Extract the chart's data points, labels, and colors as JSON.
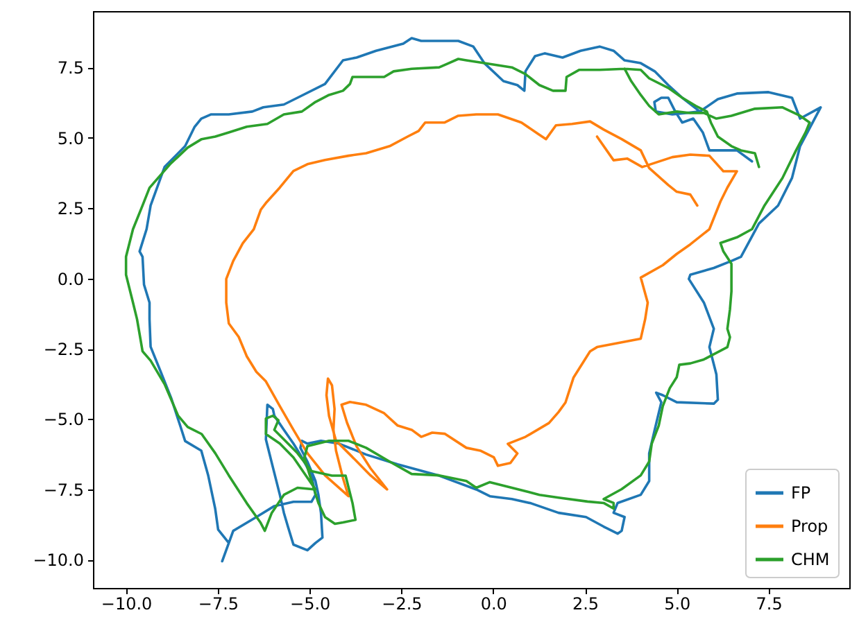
{
  "chart_data": {
    "type": "line",
    "xlim": [
      -10.9,
      9.7
    ],
    "ylim": [
      -11.0,
      9.5
    ],
    "xticks": [
      {
        "value": -10,
        "label": "−10.0"
      },
      {
        "value": -7.5,
        "label": "−7.5"
      },
      {
        "value": -5,
        "label": "−5.0"
      },
      {
        "value": -2.5,
        "label": "−2.5"
      },
      {
        "value": 0,
        "label": "0.0"
      },
      {
        "value": 2.5,
        "label": "2.5"
      },
      {
        "value": 5,
        "label": "5.0"
      },
      {
        "value": 7.5,
        "label": "7.5"
      }
    ],
    "yticks": [
      {
        "value": -10,
        "label": "−10.0"
      },
      {
        "value": -7.5,
        "label": "−7.5"
      },
      {
        "value": -5,
        "label": "−5.0"
      },
      {
        "value": -2.5,
        "label": "−2.5"
      },
      {
        "value": 0,
        "label": "0.0"
      },
      {
        "value": 2.5,
        "label": "2.5"
      },
      {
        "value": 5,
        "label": "5.0"
      },
      {
        "value": 7.5,
        "label": "7.5"
      }
    ],
    "grid": false,
    "legend": "bottom right",
    "line_style": "solid",
    "marker": "none",
    "series": [
      {
        "name": "FP",
        "color": "#1f77b4",
        "x": [
          7.05,
          6.64,
          5.89,
          5.71,
          5.45,
          5.15,
          4.96,
          4.77,
          4.58,
          4.39,
          4.43,
          4.88,
          5.63,
          5.15,
          4.77,
          4.4,
          4.02,
          3.58,
          3.28,
          2.9,
          2.38,
          1.89,
          1.41,
          1.14,
          0.88,
          0.85,
          0.66,
          0.28,
          -0.24,
          -0.54,
          -0.95,
          -1.96,
          -2.22,
          -2.45,
          -3.19,
          -3.72,
          -4.09,
          -4.58,
          -5.33,
          -5.7,
          -6.26,
          -6.56,
          -7.2,
          -7.68,
          -7.95,
          -8.13,
          -8.39,
          -8.95,
          -9.33,
          -9.44,
          -9.63,
          -9.55,
          -9.51,
          -9.36,
          -9.36,
          -9.33,
          -9.07,
          -8.77,
          -8.51,
          -8.39,
          -7.95,
          -7.76,
          -7.57,
          -7.49,
          -7.2,
          -7.38,
          -7.08,
          -6.45,
          -5.96,
          -5.44,
          -4.95,
          -4.84,
          -4.95,
          -5.21,
          -5.44,
          -5.7,
          -5.96,
          -6.0,
          -6.15,
          -6.19,
          -6.0,
          -5.81,
          -5.7,
          -5.59,
          -5.44,
          -5.06,
          -4.84,
          -4.65,
          -4.69,
          -4.76,
          -4.84,
          -5.06,
          -5.25,
          -5.21,
          -5.06,
          -4.69,
          -4.2,
          -3.46,
          -2.6,
          -1.47,
          -0.46,
          -0.09,
          0.51,
          1.03,
          1.78,
          2.53,
          3.01,
          3.39,
          3.5,
          3.58,
          3.28,
          3.39,
          4.02,
          4.25,
          4.25,
          4.4,
          4.58,
          4.44,
          4.62,
          5.0,
          6.01,
          6.12,
          6.08,
          5.89,
          6.01,
          5.74,
          5.33,
          5.37,
          6.01,
          6.49,
          6.75,
          7.24,
          7.76,
          8.14,
          8.36,
          8.92,
          8.36,
          8.14,
          7.5,
          6.64,
          6.12,
          5.63
        ],
        "values": [
          4.16,
          4.55,
          4.55,
          5.19,
          5.68,
          5.54,
          5.93,
          6.42,
          6.42,
          6.27,
          5.93,
          5.83,
          5.93,
          6.42,
          6.87,
          7.36,
          7.65,
          7.75,
          8.09,
          8.24,
          8.09,
          7.85,
          8.0,
          7.9,
          7.36,
          6.67,
          6.87,
          7.01,
          7.65,
          8.24,
          8.44,
          8.44,
          8.54,
          8.34,
          8.09,
          7.85,
          7.75,
          6.91,
          6.42,
          6.18,
          6.08,
          5.93,
          5.83,
          5.83,
          5.68,
          5.39,
          4.7,
          3.96,
          2.59,
          1.75,
          0.96,
          0.77,
          -0.22,
          -0.86,
          -1.45,
          -2.43,
          -3.27,
          -4.25,
          -5.29,
          -5.78,
          -6.12,
          -7.01,
          -8.19,
          -8.93,
          -9.4,
          -10.05,
          -8.97,
          -8.48,
          -8.09,
          -7.94,
          -7.94,
          -7.69,
          -7.0,
          -6.36,
          -5.87,
          -5.38,
          -4.88,
          -4.64,
          -4.49,
          -5.72,
          -6.71,
          -7.69,
          -8.33,
          -8.82,
          -9.46,
          -9.66,
          -9.4,
          -9.21,
          -8.33,
          -7.69,
          -7.2,
          -6.51,
          -6.02,
          -5.77,
          -5.87,
          -5.77,
          -5.87,
          -6.26,
          -6.61,
          -7.01,
          -7.5,
          -7.74,
          -7.84,
          -7.99,
          -8.33,
          -8.48,
          -8.82,
          -9.07,
          -8.97,
          -8.48,
          -8.33,
          -7.98,
          -7.69,
          -7.2,
          -6.22,
          -5.38,
          -4.4,
          -4.06,
          -4.15,
          -4.4,
          -4.45,
          -4.31,
          -3.41,
          -2.44,
          -1.79,
          -0.86,
          -0.02,
          0.13,
          0.37,
          0.62,
          0.77,
          1.95,
          2.59,
          3.57,
          4.7,
          6.08,
          5.68,
          6.42,
          6.62,
          6.57,
          6.37,
          5.93
        ]
      },
      {
        "name": "Prop",
        "color": "#ff7f0e",
        "x": [
          2.83,
          3.28,
          3.65,
          4.06,
          4.88,
          5.37,
          5.89,
          6.27,
          6.64,
          6.38,
          6.19,
          5.89,
          5.37,
          5.0,
          4.62,
          4.02,
          4.21,
          4.14,
          4.02,
          2.83,
          2.64,
          2.19,
          1.97,
          1.78,
          1.52,
          0.88,
          0.4,
          0.66,
          0.47,
          0.13,
          0.02,
          -0.35,
          -0.73,
          -1.32,
          -1.66,
          -1.96,
          -2.22,
          -2.6,
          -2.97,
          -3.46,
          -3.9,
          -4.13,
          -3.98,
          -3.72,
          -3.34,
          -2.89,
          -3.34,
          -3.9,
          -4.28,
          -4.47,
          -4.54,
          -4.5,
          -4.39,
          -4.32,
          -4.35,
          -4.28,
          -4.09,
          -3.94,
          -4.58,
          -5.06,
          -5.44,
          -5.81,
          -6.19,
          -6.45,
          -6.71,
          -6.93,
          -7.2,
          -7.27,
          -7.27,
          -7.08,
          -6.82,
          -6.52,
          -6.33,
          -6.19,
          -5.81,
          -5.44,
          -5.06,
          -4.58,
          -3.94,
          -3.46,
          -2.82,
          -2.33,
          -2.03,
          -1.85,
          -1.32,
          -0.95,
          -0.46,
          0.13,
          0.77,
          1.22,
          1.44,
          1.71,
          2.15,
          2.64,
          3.01,
          3.5,
          4.02,
          4.25,
          4.77,
          5.0,
          5.37,
          5.56
        ],
        "values": [
          5.04,
          4.2,
          4.26,
          3.96,
          4.31,
          4.4,
          4.36,
          3.81,
          3.81,
          3.23,
          2.73,
          1.75,
          1.21,
          0.87,
          0.47,
          0.03,
          -0.86,
          -1.45,
          -2.14,
          -2.44,
          -2.59,
          -3.52,
          -4.41,
          -4.75,
          -5.14,
          -5.63,
          -5.88,
          -6.22,
          -6.56,
          -6.66,
          -6.36,
          -6.12,
          -6.02,
          -5.52,
          -5.48,
          -5.63,
          -5.38,
          -5.23,
          -4.79,
          -4.49,
          -4.39,
          -4.49,
          -5.13,
          -5.97,
          -6.75,
          -7.5,
          -7.0,
          -6.26,
          -5.77,
          -4.89,
          -4.15,
          -3.56,
          -3.8,
          -4.64,
          -5.38,
          -6.12,
          -7.1,
          -7.74,
          -7.0,
          -6.21,
          -5.38,
          -4.54,
          -3.66,
          -3.32,
          -2.77,
          -2.08,
          -1.6,
          -0.86,
          -0.02,
          0.62,
          1.25,
          1.75,
          2.44,
          2.68,
          3.23,
          3.82,
          4.06,
          4.21,
          4.36,
          4.45,
          4.7,
          5.04,
          5.24,
          5.54,
          5.54,
          5.78,
          5.83,
          5.83,
          5.54,
          5.14,
          4.95,
          5.44,
          5.49,
          5.58,
          5.29,
          4.95,
          4.55,
          3.92,
          3.32,
          3.08,
          2.98,
          2.59
        ]
      },
      {
        "name": "CHM",
        "color": "#2ca02c",
        "x": [
          7.24,
          7.13,
          6.75,
          6.49,
          6.12,
          5.93,
          5.82,
          5.52,
          5.15,
          4.77,
          4.25,
          4.02,
          3.58,
          2.9,
          2.34,
          2.0,
          1.97,
          1.63,
          1.26,
          0.88,
          0.51,
          -0.24,
          -0.73,
          -0.95,
          -1.21,
          -1.47,
          -2.22,
          -2.71,
          -2.97,
          -3.83,
          -3.9,
          -4.09,
          -4.47,
          -4.84,
          -5.21,
          -5.7,
          -6.15,
          -6.71,
          -7.2,
          -7.57,
          -7.94,
          -8.32,
          -8.8,
          -9.06,
          -9.36,
          -9.55,
          -9.81,
          -10.0,
          -10.0,
          -9.81,
          -9.7,
          -9.55,
          -9.33,
          -8.95,
          -8.58,
          -8.32,
          -7.94,
          -7.57,
          -7.2,
          -6.71,
          -6.34,
          -6.22,
          -6.03,
          -5.7,
          -5.33,
          -4.84,
          -5.44,
          -5.81,
          -6.19,
          -6.19,
          -6.0,
          -5.85,
          -5.96,
          -5.7,
          -5.33,
          -4.95,
          -4.39,
          -4.02,
          -3.83,
          -3.75,
          -4.09,
          -4.31,
          -4.58,
          -4.76,
          -5.03,
          -5.14,
          -5.06,
          -4.47,
          -3.94,
          -3.46,
          -2.82,
          -2.22,
          -1.47,
          -0.73,
          -0.46,
          -0.09,
          0.51,
          1.26,
          1.78,
          2.57,
          3.01,
          3.28,
          3.28,
          3.01,
          3.5,
          4.02,
          4.25,
          4.32,
          4.51,
          4.62,
          4.81,
          5.0,
          5.07,
          5.37,
          5.74,
          6.38,
          6.45,
          6.38,
          6.45,
          6.49,
          6.49,
          6.27,
          6.19,
          6.64,
          7.05,
          7.39,
          7.88,
          8.25,
          8.51,
          8.62,
          8.36,
          7.88,
          7.13,
          6.49,
          6.08,
          5.74,
          5.37,
          5.0,
          4.51,
          4.25,
          4.02,
          3.76,
          3.58
        ],
        "values": [
          3.96,
          4.45,
          4.55,
          4.7,
          5.04,
          5.54,
          5.93,
          6.13,
          6.42,
          6.77,
          7.11,
          7.41,
          7.45,
          7.41,
          7.41,
          7.16,
          6.67,
          6.67,
          6.87,
          7.26,
          7.5,
          7.65,
          7.75,
          7.8,
          7.65,
          7.5,
          7.45,
          7.36,
          7.16,
          7.16,
          6.91,
          6.67,
          6.52,
          6.27,
          5.93,
          5.83,
          5.49,
          5.39,
          5.19,
          5.04,
          4.95,
          4.65,
          4.06,
          3.67,
          3.22,
          2.59,
          1.75,
          0.77,
          0.13,
          -0.86,
          -1.45,
          -2.59,
          -2.92,
          -3.76,
          -4.88,
          -5.28,
          -5.53,
          -6.21,
          -7.0,
          -7.99,
          -8.67,
          -8.97,
          -8.33,
          -7.69,
          -7.44,
          -7.5,
          -6.36,
          -5.87,
          -5.53,
          -4.98,
          -4.88,
          -5.04,
          -5.38,
          -5.72,
          -6.21,
          -6.85,
          -7.01,
          -7.01,
          -7.99,
          -8.58,
          -8.67,
          -8.72,
          -8.48,
          -7.98,
          -6.85,
          -6.36,
          -5.96,
          -5.77,
          -5.77,
          -6.02,
          -6.51,
          -6.95,
          -7.0,
          -7.2,
          -7.44,
          -7.24,
          -7.44,
          -7.69,
          -7.79,
          -7.93,
          -7.98,
          -8.18,
          -7.98,
          -7.84,
          -7.49,
          -7.0,
          -6.51,
          -5.87,
          -5.23,
          -4.54,
          -3.9,
          -3.51,
          -3.07,
          -3.02,
          -2.88,
          -2.44,
          -2.09,
          -1.79,
          -1.1,
          -0.46,
          0.52,
          0.96,
          1.26,
          1.46,
          1.75,
          2.59,
          3.57,
          4.55,
          5.19,
          5.54,
          5.78,
          6.08,
          6.03,
          5.78,
          5.68,
          5.88,
          5.88,
          5.93,
          5.83,
          6.13,
          6.52,
          7.01,
          7.45
        ]
      }
    ]
  }
}
